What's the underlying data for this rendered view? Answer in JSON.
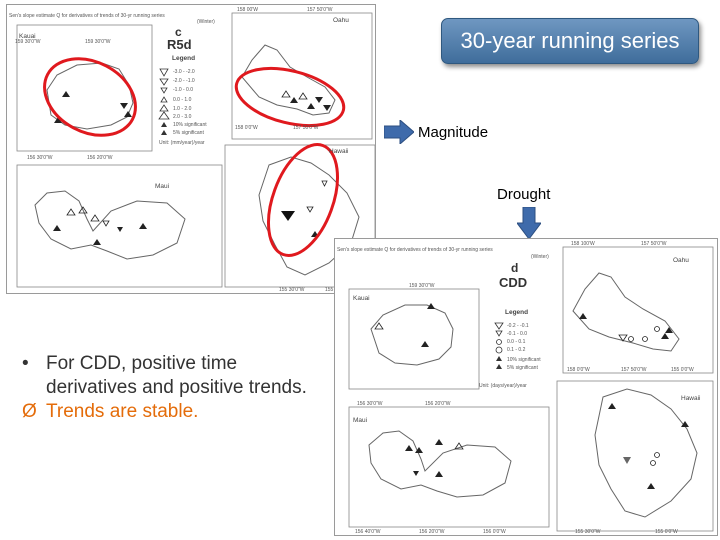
{
  "slide": {
    "title": "30-year running series",
    "magnitude_label": "Magnitude",
    "drought_label": "Drought",
    "bullets": [
      {
        "marker": "•",
        "text": "For CDD, positive time derivatives and positive trends."
      },
      {
        "marker": "Ø",
        "text": "Trends are stable."
      }
    ]
  },
  "figure_top": {
    "caption": "Sen's slope estimate Q for derivatives of trends of 30-yr running series",
    "season": "(Winter)",
    "letter": "c",
    "index": "R5d",
    "legend_title": "Legend",
    "legend_items": [
      "-3.0 - -2.0",
      "-2.0 - -1.0",
      "-1.0 - 0.0",
      "0.0 - 1.0",
      "1.0 - 2.0",
      "2.0 - 3.0",
      "10% significant",
      "5% significant"
    ],
    "unit": "Unit: (mm/year)/year",
    "islands": {
      "kauai": "Kauai",
      "oahu": "Oahu",
      "maui": "Maui",
      "hawaii": "Hawaii"
    },
    "ticks": {
      "kauai_lon": [
        "159 30'0\"W",
        "159 30'0\"W"
      ],
      "oahu_lon": [
        "158 00'W",
        "157 50'0\"W"
      ],
      "oahu_lon_bottom": [
        "158 0'0\"W",
        "157 50'0\"W"
      ],
      "kauai_lat": [
        "22 10'N",
        "22 0'N"
      ],
      "maui_lon": [
        "156 30'0\"W",
        "156 20'0\"W"
      ],
      "maui_lat": [
        "20 50'N",
        "20 40'N"
      ],
      "hawaii_lon": [
        "155 30'0\"W",
        "155 0'0\"W"
      ],
      "hawaii_lat": [
        "20 0'N",
        "19 30'N"
      ]
    }
  },
  "figure_bottom": {
    "caption": "Sen's slope estimate Q for derivatives of trends of 30-yr running series",
    "season": "(Winter)",
    "letter": "d",
    "index": "CDD",
    "legend_title": "Legend",
    "legend_items": [
      "-0.2 - -0.1",
      "-0.1 - 0.0",
      "0.0 - 0.1",
      "0.1 - 0.2",
      "10% significant",
      "5% significant"
    ],
    "unit": "Unit: (days/year)/year",
    "islands": {
      "kauai": "Kauai",
      "oahu": "Oahu",
      "maui": "Maui",
      "hawaii": "Hawaii"
    },
    "ticks": {
      "kauai_lon": [
        "159 30'0\"W"
      ],
      "oahu_lon": [
        "158 100'W",
        "157 50'0\"W"
      ],
      "oahu_lon_bottom": [
        "158 0'0\"W",
        "157 50'0\"W",
        "155 0'0\"W"
      ],
      "maui_lon": [
        "156 30'0\"W",
        "156 20'0\"W"
      ],
      "maui_lon_bottom": [
        "156 40'0\"W",
        "156 20'0\"W",
        "156 0'0\"W"
      ],
      "hawaii_lon": [
        "155 30'0\"W",
        "155 0'0\"W"
      ],
      "hawaii_lat": [
        "20 0'N",
        "19 30'N",
        "19 0'N"
      ]
    }
  },
  "colors": {
    "banner_top": "#6f97c1",
    "banner_bottom": "#3f6d9b",
    "highlight_ellipse": "#e0191e",
    "arrow_fill": "#3f6bab",
    "bullet_orange": "#e46c0a",
    "map_outline": "#666666"
  },
  "icons": {
    "right_arrow": "block-arrow-right-icon",
    "down_arrow": "block-arrow-down-icon"
  }
}
